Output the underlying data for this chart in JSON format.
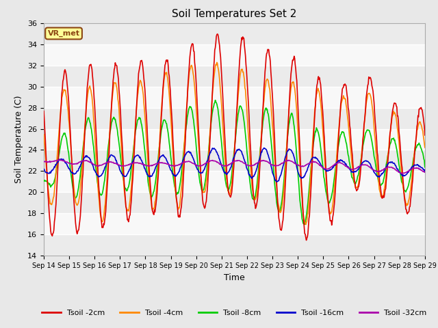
{
  "title": "Soil Temperatures Set 2",
  "xlabel": "Time",
  "ylabel": "Soil Temperature (C)",
  "ylim": [
    14,
    36
  ],
  "yticks": [
    14,
    16,
    18,
    20,
    22,
    24,
    26,
    28,
    30,
    32,
    34,
    36
  ],
  "fig_bg_color": "#e8e8e8",
  "plot_bg_color": "#ffffff",
  "grid_color": "#d0d0d0",
  "annotation_text": "VR_met",
  "annotation_bg": "#ffff99",
  "annotation_border": "#8B4513",
  "series": {
    "Tsoil -2cm": {
      "color": "#dd0000",
      "lw": 1.2
    },
    "Tsoil -4cm": {
      "color": "#ff8800",
      "lw": 1.2
    },
    "Tsoil -8cm": {
      "color": "#00cc00",
      "lw": 1.2
    },
    "Tsoil -16cm": {
      "color": "#0000cc",
      "lw": 1.2
    },
    "Tsoil -32cm": {
      "color": "#aa00aa",
      "lw": 1.2
    }
  },
  "xtick_labels": [
    "Sep 14",
    "Sep 15",
    "Sep 16",
    "Sep 17",
    "Sep 18",
    "Sep 19",
    "Sep 20",
    "Sep 21",
    "Sep 22",
    "Sep 23",
    "Sep 24",
    "Sep 25",
    "Sep 26",
    "Sep 27",
    "Sep 28",
    "Sep 29"
  ],
  "band_colors": [
    "#ebebeb",
    "#f8f8f8"
  ]
}
